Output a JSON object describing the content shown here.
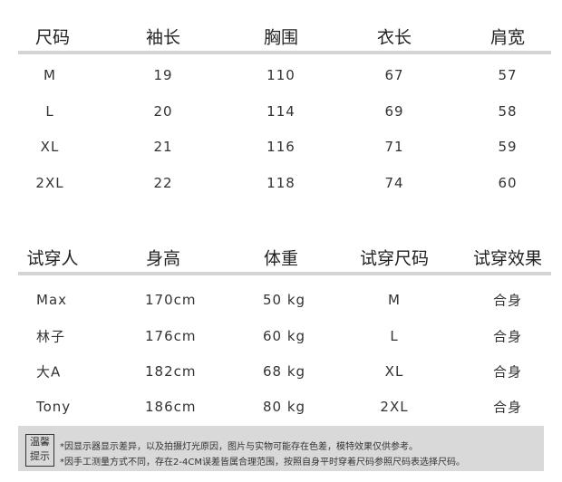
{
  "size_table": {
    "headers": [
      "尺码",
      "袖长",
      "胸围",
      "衣长",
      "肩宽"
    ],
    "rows": [
      [
        "M",
        "19",
        "110",
        "67",
        "57"
      ],
      [
        "L",
        "20",
        "114",
        "69",
        "58"
      ],
      [
        "XL",
        "21",
        "116",
        "71",
        "59"
      ],
      [
        "2XL",
        "22",
        "118",
        "74",
        "60"
      ]
    ]
  },
  "fit_table": {
    "headers": [
      "试穿人",
      "身高",
      "体重",
      "试穿尺码",
      "试穿效果"
    ],
    "rows": [
      [
        "Max",
        "170cm",
        "50 kg",
        "M",
        "合身"
      ],
      [
        "林子",
        "176cm",
        "60 kg",
        "L",
        "合身"
      ],
      [
        "大A",
        "182cm",
        "68 kg",
        "XL",
        "合身"
      ],
      [
        "Tony",
        "186cm",
        "80 kg",
        "2XL",
        "合身"
      ]
    ]
  },
  "note": {
    "label_line1": "温馨",
    "label_line2": "提示",
    "line1": "*因显示器显示差异，以及拍摄灯光原因，图片与实物可能存在色差，模特效果仅供参考。",
    "line2": "*因手工测量方式不同，存在2-4CM误差皆属合理范围，按照自身平时穿着尺码参照尺码表选择尺码。"
  }
}
